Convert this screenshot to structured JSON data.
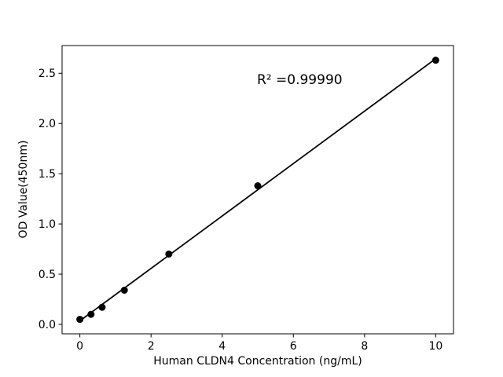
{
  "figure": {
    "background": "#ffffff",
    "foreground": "#000000"
  },
  "chart_data": {
    "type": "scatter",
    "title": "",
    "xlabel": "Human CLDN4 Concentration (ng/mL)",
    "ylabel": "OD Value(450nm)",
    "xlim": [
      -0.5,
      10.5
    ],
    "ylim": [
      -0.094,
      2.776
    ],
    "grid": false,
    "legend": "none",
    "xticks": {
      "values": [
        0,
        2,
        4,
        6,
        8,
        10
      ],
      "labels": [
        "0",
        "2",
        "4",
        "6",
        "8",
        "10"
      ]
    },
    "yticks": {
      "values": [
        0.0,
        0.5,
        1.0,
        1.5,
        2.0,
        2.5
      ],
      "labels": [
        "0.0",
        "0.5",
        "1.0",
        "1.5",
        "2.0",
        "2.5"
      ]
    },
    "series": [
      {
        "name": "linear-fit",
        "kind": "line",
        "color": "#000000",
        "points": [
          {
            "x": 0,
            "y": 0.035
          },
          {
            "x": 10,
            "y": 2.645
          }
        ]
      },
      {
        "name": "standards",
        "kind": "scatter",
        "color": "#000000",
        "points": [
          {
            "x": 0,
            "y": 0.05
          },
          {
            "x": 0.3125,
            "y": 0.1
          },
          {
            "x": 0.625,
            "y": 0.17
          },
          {
            "x": 1.25,
            "y": 0.34
          },
          {
            "x": 2.5,
            "y": 0.7
          },
          {
            "x": 5,
            "y": 1.38
          },
          {
            "x": 10,
            "y": 2.63
          }
        ]
      }
    ],
    "annotations": [
      {
        "text": "R² =0.99990"
      }
    ]
  }
}
